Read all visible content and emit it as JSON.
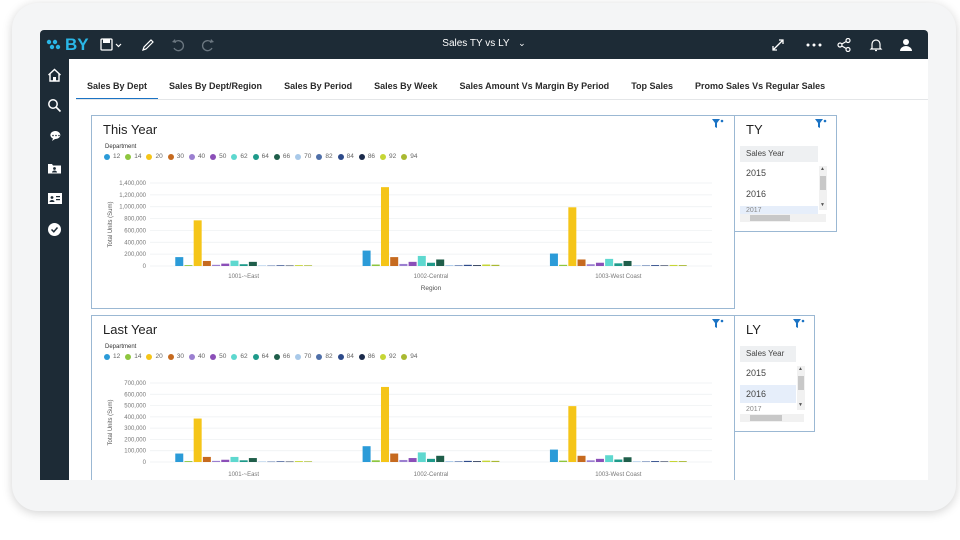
{
  "app": {
    "logo_text": "BY",
    "report_title": "Sales TY vs LY"
  },
  "tabs": [
    {
      "label": "Sales By Dept",
      "active": true
    },
    {
      "label": "Sales By Dept/Region",
      "active": false
    },
    {
      "label": "Sales By Period",
      "active": false
    },
    {
      "label": "Sales By Week",
      "active": false
    },
    {
      "label": "Sales Amount Vs Margin By Period",
      "active": false
    },
    {
      "label": "Top Sales",
      "active": false
    },
    {
      "label": "Promo Sales Vs Regular Sales",
      "active": false
    }
  ],
  "colors": {
    "topbar": "#1d2b36",
    "accent": "#1b73c4",
    "panel_border": "#9bb8d3"
  },
  "legend": {
    "title": "Department",
    "items": [
      {
        "label": "12",
        "color": "#2b9bd8"
      },
      {
        "label": "14",
        "color": "#8ec63f"
      },
      {
        "label": "20",
        "color": "#f5c518"
      },
      {
        "label": "30",
        "color": "#c66a1f"
      },
      {
        "label": "40",
        "color": "#9b7fd0"
      },
      {
        "label": "50",
        "color": "#8b4fb8"
      },
      {
        "label": "62",
        "color": "#5ed8cf"
      },
      {
        "label": "64",
        "color": "#1e9a8a"
      },
      {
        "label": "66",
        "color": "#1f5e4a"
      },
      {
        "label": "70",
        "color": "#a9c9e9"
      },
      {
        "label": "82",
        "color": "#4f6fa8"
      },
      {
        "label": "84",
        "color": "#2d4a8a"
      },
      {
        "label": "86",
        "color": "#1b2a4a"
      },
      {
        "label": "92",
        "color": "#c6d635"
      },
      {
        "label": "94",
        "color": "#a9b932"
      }
    ]
  },
  "chart_data": [
    {
      "type": "bar",
      "title": "This Year",
      "xlabel": "Region",
      "ylabel": "Total Units (Sum)",
      "ylim": [
        0,
        1400000
      ],
      "yticks": [
        "0",
        "200,000",
        "400,000",
        "600,000",
        "800,000",
        "1,000,000",
        "1,200,000",
        "1,400,000"
      ],
      "categories": [
        "1001-~East",
        "1002-Central",
        "1003-West Coast"
      ],
      "series": [
        {
          "name": "12",
          "values": [
            150000,
            260000,
            210000
          ]
        },
        {
          "name": "14",
          "values": [
            15000,
            25000,
            20000
          ]
        },
        {
          "name": "20",
          "values": [
            770000,
            1330000,
            990000
          ]
        },
        {
          "name": "30",
          "values": [
            85000,
            150000,
            110000
          ]
        },
        {
          "name": "40",
          "values": [
            20000,
            35000,
            30000
          ]
        },
        {
          "name": "50",
          "values": [
            40000,
            70000,
            55000
          ]
        },
        {
          "name": "62",
          "values": [
            90000,
            170000,
            120000
          ]
        },
        {
          "name": "64",
          "values": [
            30000,
            55000,
            45000
          ]
        },
        {
          "name": "66",
          "values": [
            70000,
            110000,
            85000
          ]
        },
        {
          "name": "70",
          "values": [
            10000,
            15000,
            12000
          ]
        },
        {
          "name": "82",
          "values": [
            8000,
            12000,
            10000
          ]
        },
        {
          "name": "84",
          "values": [
            12000,
            20000,
            15000
          ]
        },
        {
          "name": "86",
          "values": [
            8000,
            14000,
            10000
          ]
        },
        {
          "name": "92",
          "values": [
            15000,
            25000,
            18000
          ]
        },
        {
          "name": "94",
          "values": [
            12000,
            20000,
            15000
          ]
        }
      ]
    },
    {
      "type": "bar",
      "title": "Last Year",
      "xlabel": "",
      "ylabel": "Total Units (Sum)",
      "ylim": [
        0,
        700000
      ],
      "yticks": [
        "0",
        "100,000",
        "200,000",
        "300,000",
        "400,000",
        "500,000",
        "600,000",
        "700,000"
      ],
      "categories": [
        "1001-~East",
        "1002-Central",
        "1003-West Coast"
      ],
      "series": [
        {
          "name": "12",
          "values": [
            75000,
            140000,
            110000
          ]
        },
        {
          "name": "14",
          "values": [
            8000,
            15000,
            12000
          ]
        },
        {
          "name": "20",
          "values": [
            385000,
            665000,
            495000
          ]
        },
        {
          "name": "30",
          "values": [
            45000,
            75000,
            55000
          ]
        },
        {
          "name": "40",
          "values": [
            10000,
            18000,
            15000
          ]
        },
        {
          "name": "50",
          "values": [
            20000,
            35000,
            28000
          ]
        },
        {
          "name": "62",
          "values": [
            45000,
            85000,
            60000
          ]
        },
        {
          "name": "64",
          "values": [
            15000,
            28000,
            22000
          ]
        },
        {
          "name": "66",
          "values": [
            35000,
            55000,
            42000
          ]
        },
        {
          "name": "70",
          "values": [
            5000,
            8000,
            6000
          ]
        },
        {
          "name": "82",
          "values": [
            4000,
            6000,
            5000
          ]
        },
        {
          "name": "84",
          "values": [
            6000,
            10000,
            8000
          ]
        },
        {
          "name": "86",
          "values": [
            4000,
            7000,
            5000
          ]
        },
        {
          "name": "92",
          "values": [
            8000,
            12000,
            9000
          ]
        },
        {
          "name": "94",
          "values": [
            6000,
            10000,
            8000
          ]
        }
      ]
    }
  ],
  "slicers": [
    {
      "title": "TY",
      "header": "Sales Year",
      "options": [
        "2015",
        "2016"
      ],
      "selected_partial": "2017"
    },
    {
      "title": "LY",
      "header": "Sales Year",
      "options": [
        "2015",
        "2016"
      ],
      "selected_index": 1,
      "partial": "2017"
    }
  ]
}
